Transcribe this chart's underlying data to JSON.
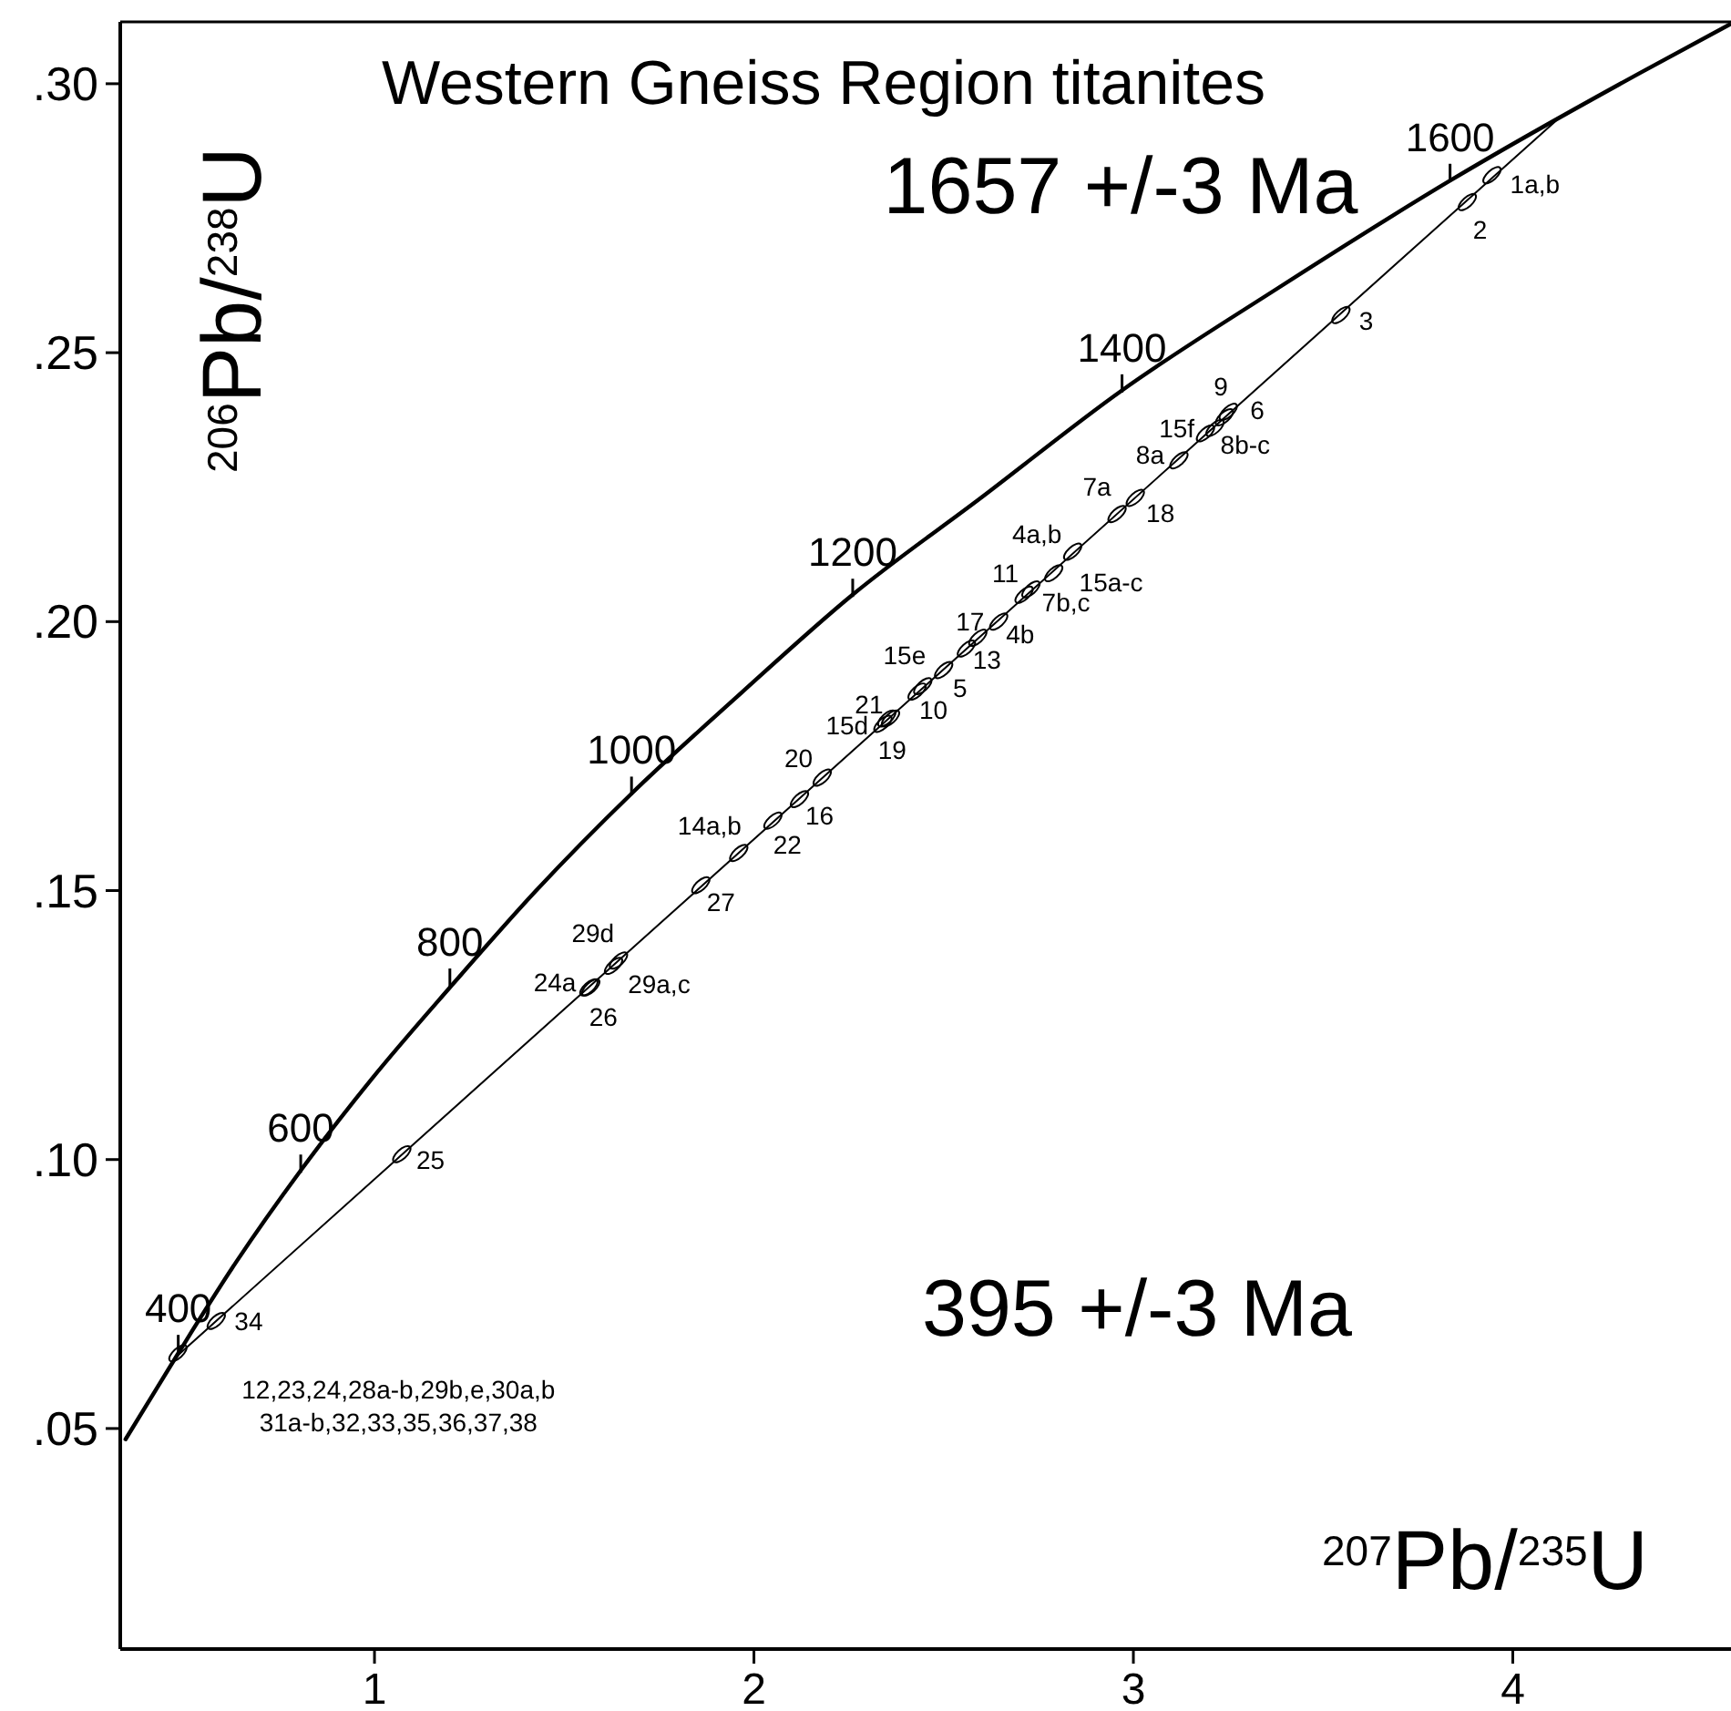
{
  "chart_data": {
    "type": "line",
    "title": "Western Gneiss Region titanites",
    "xlabel": "$^{207}$Pb/$^{235}$U",
    "ylabel": "$^{206}$Pb/$^{238}$U",
    "xlim": [
      0.33,
      4.575
    ],
    "ylim": [
      0.009,
      0.3115
    ],
    "xticks": [
      1,
      2,
      3,
      4
    ],
    "yticks": [
      {
        "value": 0.05,
        "label": ".05"
      },
      {
        "value": 0.1,
        "label": ".10"
      },
      {
        "value": 0.15,
        "label": ".15"
      },
      {
        "value": 0.2,
        "label": ".20"
      },
      {
        "value": 0.25,
        "label": ".25"
      },
      {
        "value": 0.3,
        "label": ".30"
      }
    ],
    "series": [
      {
        "color": "#000000",
        "x": [
          0.344,
          0.483,
          0.636,
          0.806,
          0.993,
          1.199,
          1.426,
          1.677,
          1.955,
          2.26,
          2.598,
          2.97,
          3.381,
          3.835,
          4.335,
          4.571
        ],
        "values": [
          0.048,
          0.064,
          0.081,
          0.098,
          0.115,
          0.132,
          0.15,
          0.168,
          0.186,
          0.205,
          0.223,
          0.243,
          0.262,
          0.282,
          0.302,
          0.311
        ]
      },
      {
        "type": "line",
        "color": "#000000",
        "x": [
          0.4755,
          4.1133
        ],
        "values": [
          0.0632,
          0.2931
        ]
      },
      {
        "type": "scatter",
        "marker": "circle",
        "color": "#000000",
        "x": [
          3.945,
          3.88,
          3.547,
          3.24,
          3.25,
          3.19,
          3.215,
          3.12,
          2.957,
          3.005,
          2.84,
          2.79,
          2.712,
          2.73,
          2.645,
          2.56,
          2.59,
          2.5,
          2.445,
          2.36,
          2.34,
          2.35,
          2.43,
          2.18,
          2.12,
          2.05,
          1.96,
          1.86,
          1.643,
          1.63,
          1.57,
          1.565,
          1.072,
          0.583,
          0.482
        ],
        "values": [
          0.283,
          0.278,
          0.257,
          0.238,
          0.239,
          0.235,
          0.236,
          0.23,
          0.22,
          0.223,
          0.213,
          0.209,
          0.205,
          0.206,
          0.2,
          0.195,
          0.197,
          0.191,
          0.188,
          0.182,
          0.181,
          0.182,
          0.187,
          0.171,
          0.167,
          0.163,
          0.157,
          0.151,
          0.137,
          0.136,
          0.132,
          0.132,
          0.101,
          0.07,
          0.064
        ]
      }
    ],
    "annotations": [
      "1657 +/-3 Ma",
      "395 +/-3 Ma",
      {
        "text": "400",
        "x": 0.4828,
        "y": 0.06402
      },
      {
        "text": "600",
        "x": 0.8056,
        "y": 0.09754
      },
      {
        "text": "800",
        "x": 1.1987,
        "y": 0.13213
      },
      {
        "text": "1000",
        "x": 1.6774,
        "y": 0.1678
      },
      {
        "text": "1200",
        "x": 2.2603,
        "y": 0.20459
      },
      {
        "text": "1400",
        "x": 2.9701,
        "y": 0.24259
      },
      {
        "text": "1600",
        "x": 3.8346,
        "y": 0.28173
      },
      {
        "text": "1a,b",
        "x": 3.945,
        "y": 0.283
      },
      {
        "text": "2",
        "x": 3.88,
        "y": 0.278
      },
      {
        "text": "3",
        "x": 3.547,
        "y": 0.257
      },
      {
        "text": "9",
        "x": 3.24,
        "y": 0.238
      },
      {
        "text": "6",
        "x": 3.25,
        "y": 0.239
      },
      {
        "text": "15f",
        "x": 3.19,
        "y": 0.235
      },
      {
        "text": "8b-c",
        "x": 3.215,
        "y": 0.236
      },
      {
        "text": "8a",
        "x": 3.12,
        "y": 0.23
      },
      {
        "text": "7a",
        "x": 2.957,
        "y": 0.22
      },
      {
        "text": "18",
        "x": 3.005,
        "y": 0.223
      },
      {
        "text": "4a,b",
        "x": 2.84,
        "y": 0.213
      },
      {
        "text": "15a-c",
        "x": 2.79,
        "y": 0.209
      },
      {
        "text": "11",
        "x": 2.712,
        "y": 0.205
      },
      {
        "text": "7b,c",
        "x": 2.73,
        "y": 0.206
      },
      {
        "text": "4b",
        "x": 2.645,
        "y": 0.2
      },
      {
        "text": "17",
        "x": 2.56,
        "y": 0.195
      },
      {
        "text": "13",
        "x": 2.59,
        "y": 0.197
      },
      {
        "text": "5",
        "x": 2.5,
        "y": 0.191
      },
      {
        "text": "15e",
        "x": 2.445,
        "y": 0.188
      },
      {
        "text": "21",
        "x": 2.36,
        "y": 0.182
      },
      {
        "text": "15d",
        "x": 2.34,
        "y": 0.181
      },
      {
        "text": "19",
        "x": 2.35,
        "y": 0.182
      },
      {
        "text": "10",
        "x": 2.43,
        "y": 0.187
      },
      {
        "text": "20",
        "x": 2.18,
        "y": 0.171
      },
      {
        "text": "16",
        "x": 2.12,
        "y": 0.167
      },
      {
        "text": "22",
        "x": 2.05,
        "y": 0.163
      },
      {
        "text": "14a,b",
        "x": 1.96,
        "y": 0.157
      },
      {
        "text": "27",
        "x": 1.86,
        "y": 0.151
      },
      {
        "text": "29d",
        "x": 1.643,
        "y": 0.137
      },
      {
        "text": "29a,c",
        "x": 1.63,
        "y": 0.136
      },
      {
        "text": "24a",
        "x": 1.57,
        "y": 0.132
      },
      {
        "text": "26",
        "x": 1.565,
        "y": 0.132
      },
      {
        "text": "25",
        "x": 1.072,
        "y": 0.101
      },
      {
        "text": "34",
        "x": 0.583,
        "y": 0.07
      },
      {
        "text": "12,23,24,28a-b,29b,e,30a,b 31a-b,32,33,35,36,37,38",
        "x": 0.482,
        "y": 0.064
      }
    ]
  }
}
